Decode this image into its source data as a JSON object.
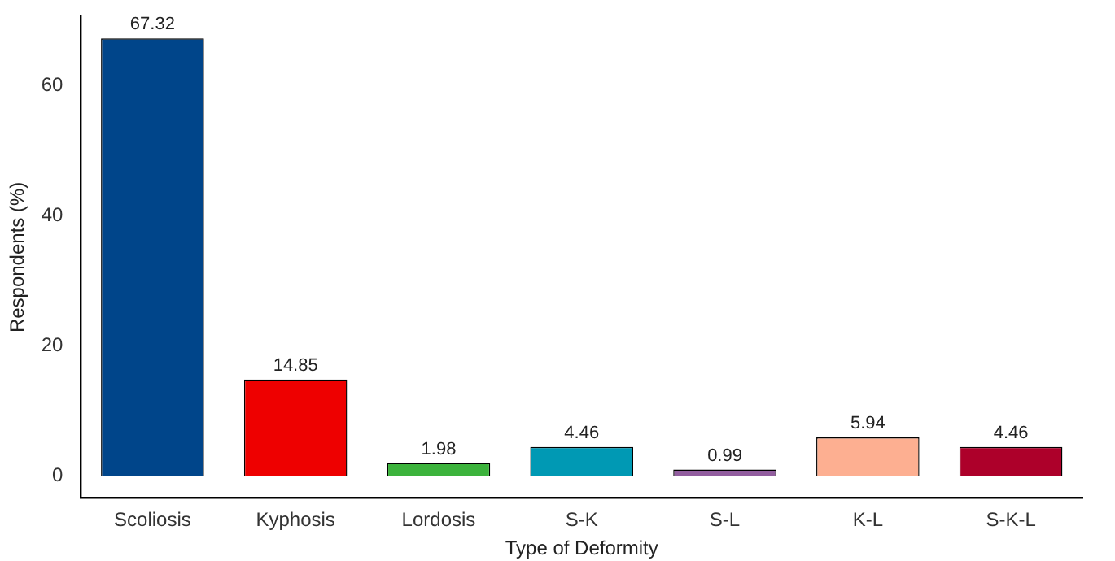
{
  "chart_data": {
    "type": "bar",
    "xlabel": "Type of Deformity",
    "ylabel": "Respondents (%)",
    "categories": [
      "Scoliosis",
      "Kyphosis",
      "Lordosis",
      "S-K",
      "S-L",
      "K-L",
      "S-K-L"
    ],
    "values": [
      67.32,
      14.85,
      1.98,
      4.46,
      0.99,
      5.94,
      4.46
    ],
    "colors": [
      "#00458a",
      "#ee0000",
      "#3cb33c",
      "#0099b4",
      "#925e9f",
      "#fdaf91",
      "#ad002a"
    ],
    "ylim": [
      -3.37,
      70.69
    ],
    "yticks": [
      0,
      20,
      40,
      60
    ],
    "grid": false,
    "data_labels": true,
    "legend": false
  }
}
